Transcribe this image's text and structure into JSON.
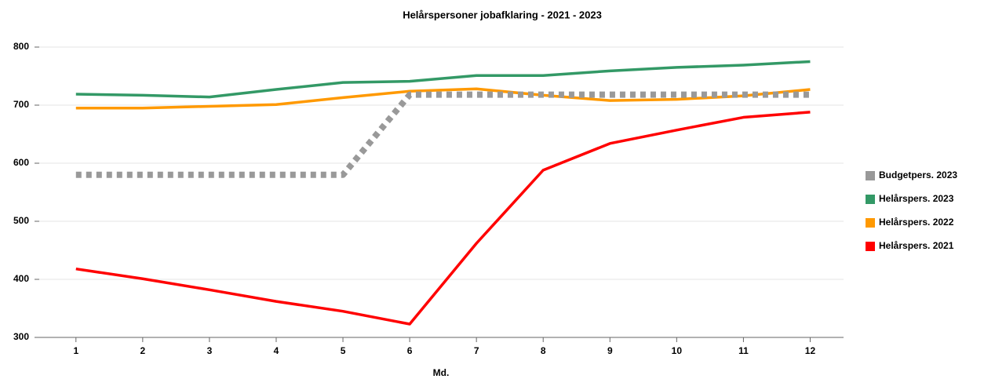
{
  "chart_data": {
    "type": "line",
    "title": "Helårspersoner jobafklaring - 2021 - 2023",
    "x_label": "Md.",
    "x": [
      1,
      2,
      3,
      4,
      5,
      6,
      7,
      8,
      9,
      10,
      11,
      12
    ],
    "xlim": [
      0.45,
      12.5
    ],
    "xticks": [
      1,
      2,
      3,
      4,
      5,
      6,
      7,
      8,
      9,
      10,
      11,
      12
    ],
    "ylim": [
      300,
      800
    ],
    "yticks": [
      300,
      400,
      500,
      600,
      700,
      800
    ],
    "grid": true,
    "legend": "right",
    "series": [
      {
        "name": "Budgetpers. 2023",
        "color": "#999999",
        "dashed": true,
        "values": [
          580,
          580,
          580,
          580,
          580,
          718,
          718,
          718,
          718,
          718,
          718,
          718
        ]
      },
      {
        "name": "Helårspers. 2023",
        "color": "#339966",
        "values": [
          719,
          717,
          714,
          727,
          739,
          741,
          751,
          751,
          759,
          765,
          769,
          775
        ]
      },
      {
        "name": "Helårspers. 2022",
        "color": "#ff9900",
        "values": [
          695,
          695,
          698,
          701,
          713,
          724,
          728,
          717,
          708,
          710,
          716,
          727
        ]
      },
      {
        "name": "Helårspers. 2021",
        "color": "#ff0000",
        "values": [
          418,
          401,
          382,
          362,
          345,
          323,
          462,
          588,
          634,
          657,
          679,
          688
        ]
      }
    ]
  }
}
